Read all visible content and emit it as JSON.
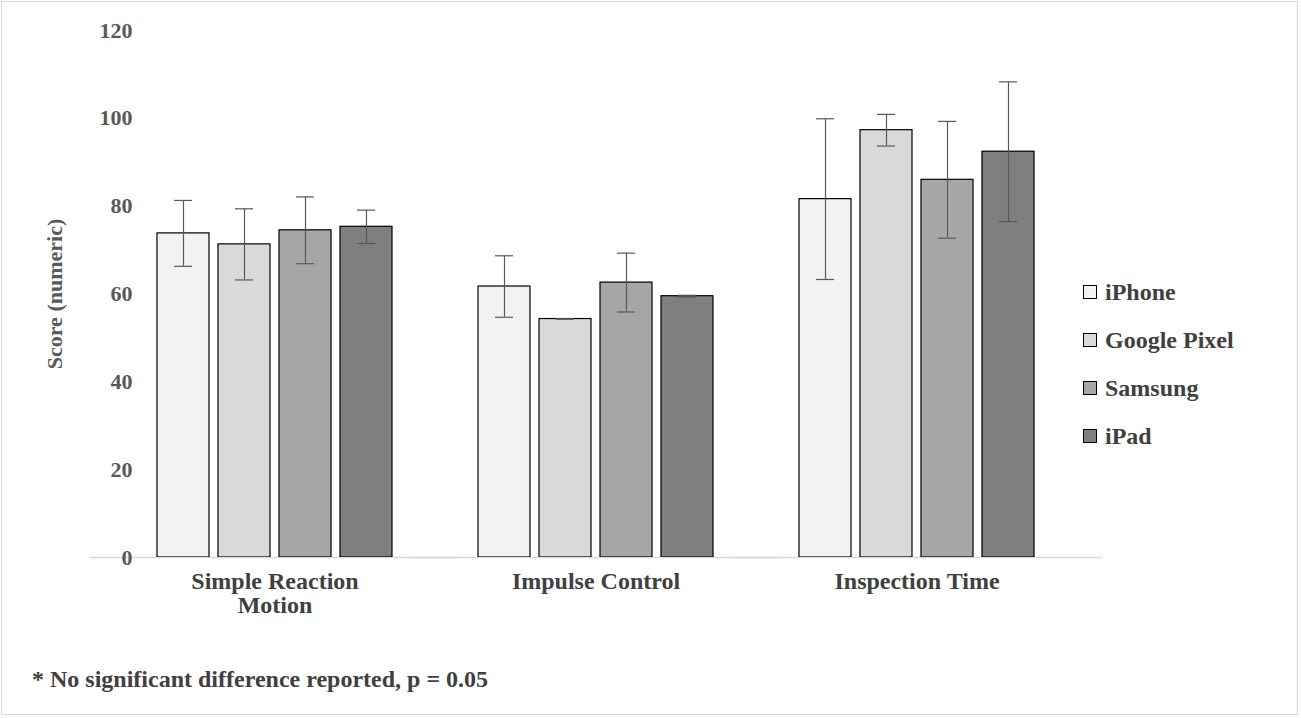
{
  "chart_data": {
    "type": "bar",
    "y_label": "Score (numeric)",
    "annotation": "* No significant difference reported, p = 0.05",
    "categories": [
      "Simple Reaction Motion",
      "Impulse Control",
      "Inspection Time"
    ],
    "series": [
      {
        "name": "iPhone",
        "color": "#f2f2f2",
        "values": [
          73.8,
          61.7,
          81.6
        ],
        "errors": [
          7.5,
          7.0,
          18.3
        ]
      },
      {
        "name": "Google Pixel",
        "color": "#d9d9d9",
        "values": [
          71.3,
          54.3,
          97.3
        ],
        "errors": [
          8.1,
          0,
          3.6
        ]
      },
      {
        "name": "Samsung",
        "color": "#a6a6a6",
        "values": [
          74.5,
          62.6,
          86.0
        ],
        "errors": [
          7.6,
          6.7,
          13.3
        ]
      },
      {
        "name": "iPad",
        "color": "#7f7f7f",
        "values": [
          75.3,
          59.5,
          92.4
        ],
        "errors": [
          3.8,
          0.2,
          15.9
        ]
      }
    ],
    "ylim": [
      0,
      120
    ],
    "yticks": [
      0,
      20,
      40,
      60,
      80,
      100,
      120
    ],
    "grid": false,
    "legend": "right"
  }
}
